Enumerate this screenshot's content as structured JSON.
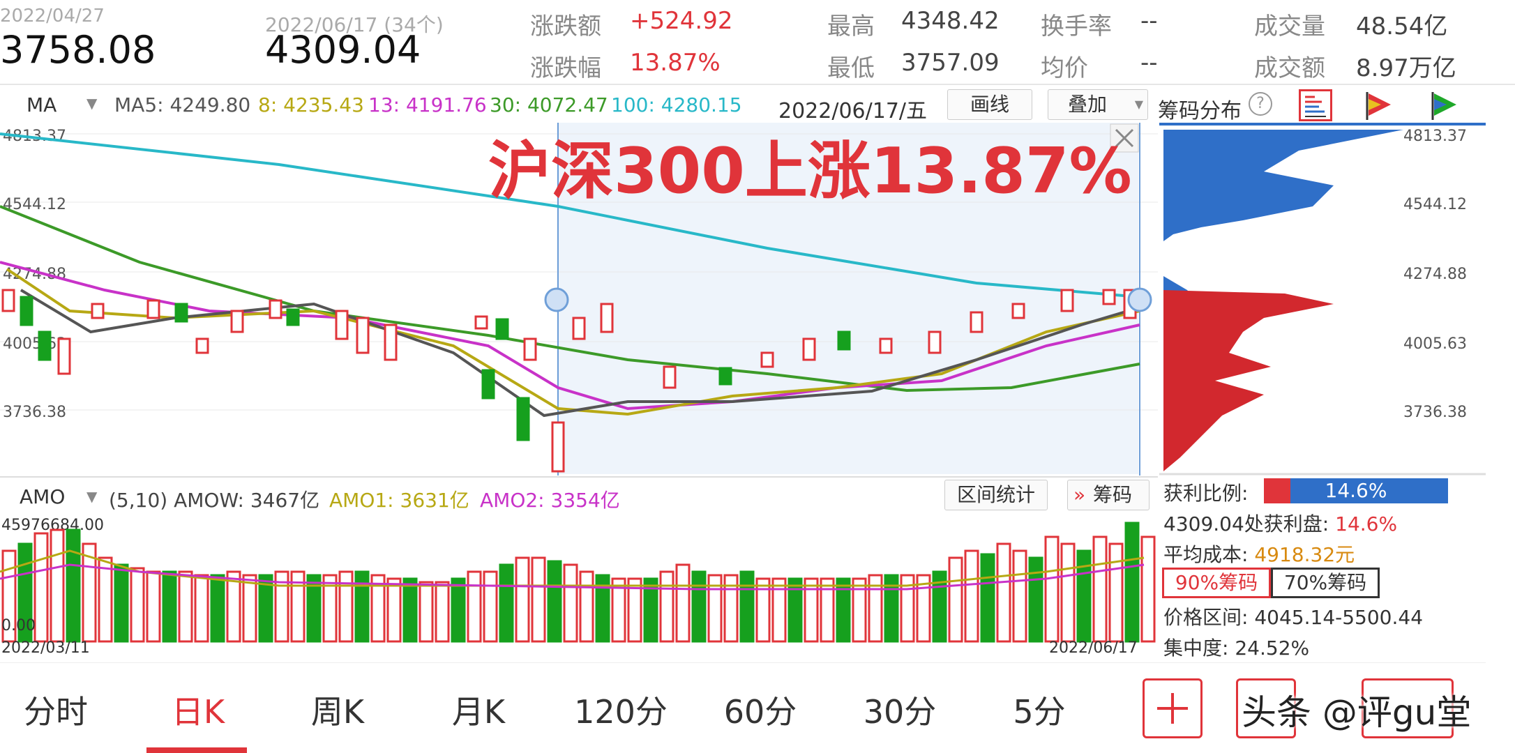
{
  "header": {
    "start_date": "2022/04/27",
    "start_price": "3758.08",
    "end_date": "2022/06/17  (34个)",
    "end_price": "4309.04",
    "change_amt_label": "涨跌额",
    "change_amt": "+524.92",
    "change_pct_label": "涨跌幅",
    "change_pct": "13.87%",
    "high_label": "最高",
    "high": "4348.42",
    "low_label": "最低",
    "low": "3757.09",
    "turnover_label": "换手率",
    "turnover": "--",
    "avg_label": "均价",
    "avg": "--",
    "volume_label": "成交量",
    "volume": "48.54亿",
    "amount_label": "成交额",
    "amount": "8.97万亿"
  },
  "ma_bar": {
    "indicator": "MA",
    "ma5": "MA5: 4249.80",
    "ma8": "8: 4235.43",
    "ma13": "13: 4191.76",
    "ma30": "30: 4072.47",
    "ma100": "100: 4280.15",
    "date": "2022/06/17/五",
    "draw_btn": "画线",
    "overlay_btn": "叠加",
    "chip_label": "筹码分布"
  },
  "price_chart": {
    "ticks": [
      "4813.37",
      "4544.12",
      "4274.88",
      "4005.63",
      "3736.38"
    ],
    "annotation": "沪深300上涨13.87%"
  },
  "amo_bar": {
    "indicator": "AMO",
    "params": "(5,10) AMOW: 3467亿",
    "amo1": "AMO1: 3631亿",
    "amo2": "AMO2: 3354亿",
    "range_btn": "区间统计",
    "chip_btn": "筹码"
  },
  "volume_chart": {
    "max": "45976684.00",
    "min": "0.00",
    "date_start": "2022/03/11",
    "date_end": "2022/06/17"
  },
  "chip_panel": {
    "ticks": [
      "4813.37",
      "4544.12",
      "4274.88",
      "4005.63",
      "3736.38"
    ],
    "profit_ratio_label": "获利比例:",
    "profit_ratio": "14.6%",
    "profit_at_label": "4309.04处获利盘:",
    "profit_at": "14.6%",
    "avg_cost_label": "平均成本:",
    "avg_cost": "4918.32元",
    "chip90": "90%筹码",
    "chip70": "70%筹码",
    "range_label": "价格区间:",
    "range": "4045.14-5500.44",
    "conc_label": "集中度:",
    "conc": "24.52%"
  },
  "tabs": [
    "分时",
    "日K",
    "周K",
    "月K",
    "120分",
    "60分",
    "30分",
    "5分"
  ],
  "active_tab": "日K",
  "watermark": "头条 @评gu堂",
  "colors": {
    "up": "#e0343a",
    "down": "#16a01e",
    "ma5": "#555555",
    "ma8": "#b7a814",
    "ma13": "#c832c8",
    "ma30": "#3c9a28",
    "ma100": "#28b8c8",
    "chip_blue": "#2f6fc8"
  }
}
